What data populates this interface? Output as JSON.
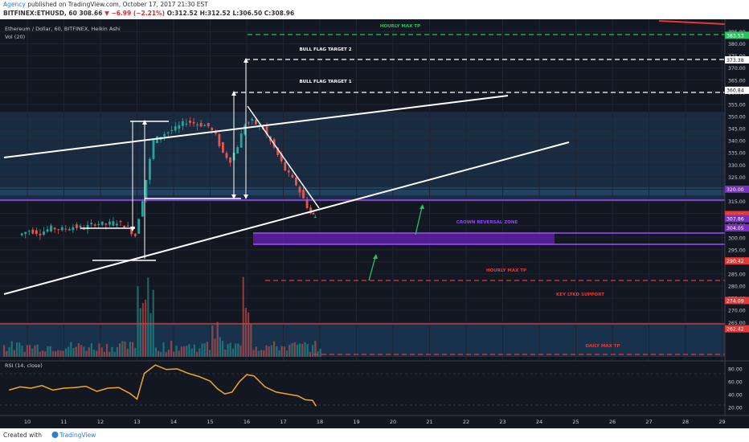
{
  "header": {
    "author": "Agency",
    "published": "published on TradingView.com, October 17, 2017 21:30 EST",
    "symbol_line": "BITFINEX:ETHUSD, 60",
    "last": "308.66",
    "change": "▼ −6.99 (−2.21%)",
    "o": "O:312.52",
    "h": "H:312.52",
    "l": "L:306.50",
    "c": "C:308.96"
  },
  "legend": {
    "title": "Ethereum / Dollar, 60, BITFINEX, Heikin Ashi",
    "vol": "Vol (20)",
    "rsi": "RSI (14, close)"
  },
  "annotations": {
    "hourly_max_tp": "HOURLY MAX TP",
    "bull_flag_target_2": "BULL FLAG TARGET 2",
    "bull_flag_target_1": "BULL FLAG TARGET 1",
    "crown_reversal_zone": "CROWN REVERSAL ZONE",
    "hourly_max_tp_lower": "HOURLY MAX TP",
    "key_ltkd_support": "KEY LTKD SUPPORT",
    "daily_max_tp": "DAILY MAX TP"
  },
  "footer": {
    "created_with": "Created with",
    "brand": "TradingView"
  },
  "colors": {
    "background": "#131722",
    "white_line": "#ffffff",
    "green_level": "#22c55e",
    "red_level": "#e53935",
    "purple_zone": "#7b2fbe",
    "orange_rsi": "#f5a623",
    "zone_band": "#1c3a5a"
  },
  "chart_data": {
    "type": "line",
    "chart_subtype": "heikin-ashi candlestick with volume and RSI panes",
    "symbol": "ETHUSD",
    "exchange": "BITFINEX",
    "timeframe": "60",
    "x_ticks": [
      "10",
      "11",
      "12",
      "13",
      "14",
      "15",
      "16",
      "17",
      "18",
      "19",
      "20",
      "21",
      "22",
      "23",
      "24",
      "25",
      "26",
      "27",
      "28",
      "29"
    ],
    "ylim": [
      259,
      388
    ],
    "y_ticks": [
      265,
      270,
      275,
      280,
      285,
      290,
      295,
      300,
      305,
      310,
      315,
      320,
      325,
      330,
      335,
      340,
      345,
      350,
      355,
      360,
      365,
      370,
      375,
      380,
      385
    ],
    "price_labels": [
      {
        "value": 383.53,
        "text": "383.53",
        "color": "#22c55e"
      },
      {
        "value": 373.38,
        "text": "373.38",
        "color": "#ffffff"
      },
      {
        "value": 360.84,
        "text": "360.84",
        "color": "#ffffff"
      },
      {
        "value": 320.0,
        "text": "320.00",
        "color": "#7b2fbe"
      },
      {
        "value": 308.96,
        "text": "308.96",
        "color": "#e53935"
      },
      {
        "value": 309.55,
        "text": "309.55",
        "color": "#e53935"
      },
      {
        "value": 308.66,
        "text": "308.66",
        "color": "#e53935"
      },
      {
        "value": 307.86,
        "text": "307.86",
        "color": "#7b2fbe"
      },
      {
        "value": 304.05,
        "text": "304.05",
        "color": "#7b2fbe"
      },
      {
        "value": 290.42,
        "text": "290.42",
        "color": "#e53935"
      },
      {
        "value": 274.09,
        "text": "274.09",
        "color": "#e53935"
      },
      {
        "value": 262.42,
        "text": "262.42",
        "color": "#e53935"
      }
    ],
    "price_path": [
      [
        9.8,
        301
      ],
      [
        10.1,
        303
      ],
      [
        10.4,
        302
      ],
      [
        10.7,
        304
      ],
      [
        11.0,
        303.5
      ],
      [
        11.3,
        304.5
      ],
      [
        11.6,
        304
      ],
      [
        11.9,
        306
      ],
      [
        12.2,
        305.5
      ],
      [
        12.5,
        306.5
      ],
      [
        12.8,
        304
      ],
      [
        13.0,
        301
      ],
      [
        13.2,
        316
      ],
      [
        13.5,
        340
      ],
      [
        13.8,
        343
      ],
      [
        14.1,
        345
      ],
      [
        14.4,
        348
      ],
      [
        14.7,
        347
      ],
      [
        15.0,
        346
      ],
      [
        15.2,
        342
      ],
      [
        15.4,
        335
      ],
      [
        15.6,
        332
      ],
      [
        15.8,
        338
      ],
      [
        16.0,
        347
      ],
      [
        16.2,
        348
      ],
      [
        16.5,
        345
      ],
      [
        16.8,
        337
      ],
      [
        17.1,
        328
      ],
      [
        17.4,
        322
      ],
      [
        17.6,
        316
      ],
      [
        17.8,
        310
      ],
      [
        17.9,
        308.6
      ]
    ],
    "rsi": {
      "ylim": [
        10,
        90
      ],
      "ticks": [
        20,
        40,
        60,
        80
      ],
      "values": [
        [
          9.5,
          47
        ],
        [
          9.8,
          52
        ],
        [
          10.1,
          50
        ],
        [
          10.4,
          54
        ],
        [
          10.7,
          47
        ],
        [
          11.0,
          50
        ],
        [
          11.3,
          51
        ],
        [
          11.6,
          53
        ],
        [
          11.9,
          45
        ],
        [
          12.2,
          50
        ],
        [
          12.5,
          51
        ],
        [
          12.8,
          42
        ],
        [
          13.0,
          33
        ],
        [
          13.2,
          73
        ],
        [
          13.5,
          86
        ],
        [
          13.8,
          79
        ],
        [
          14.1,
          80
        ],
        [
          14.4,
          73
        ],
        [
          14.7,
          68
        ],
        [
          15.0,
          61
        ],
        [
          15.2,
          49
        ],
        [
          15.4,
          41
        ],
        [
          15.6,
          44
        ],
        [
          15.8,
          60
        ],
        [
          16.0,
          71
        ],
        [
          16.2,
          69
        ],
        [
          16.5,
          52
        ],
        [
          16.8,
          44
        ],
        [
          17.1,
          41
        ],
        [
          17.4,
          38
        ],
        [
          17.6,
          32
        ],
        [
          17.8,
          31
        ],
        [
          17.9,
          22
        ]
      ]
    }
  }
}
